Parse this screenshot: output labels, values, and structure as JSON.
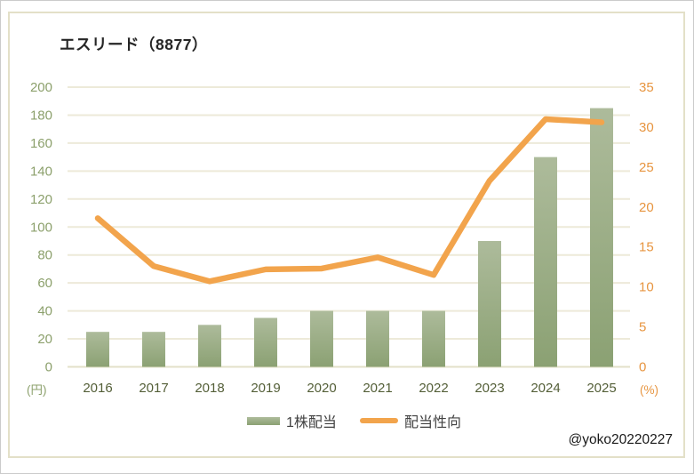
{
  "watermark": "@yoko20220227",
  "chart_data": {
    "type": "bar",
    "subtype": "bar+line combo, dual axis",
    "title": "エスリード（8877）",
    "categories": [
      "2016",
      "2017",
      "2018",
      "2019",
      "2020",
      "2021",
      "2022",
      "2023",
      "2024",
      "2025"
    ],
    "series": [
      {
        "name": "1株配当",
        "type": "bar",
        "axis": "left",
        "unit": "円",
        "values": [
          25,
          25,
          30,
          35,
          40,
          40,
          40,
          90,
          150,
          185
        ]
      },
      {
        "name": "配当性向",
        "type": "line",
        "axis": "right",
        "unit": "%",
        "values": [
          18.6,
          12.6,
          10.7,
          12.2,
          12.3,
          13.7,
          11.5,
          23.3,
          31.0,
          30.6
        ]
      }
    ],
    "left_axis": {
      "min": 0,
      "max": 200,
      "step": 20,
      "ticks": [
        0,
        20,
        40,
        60,
        80,
        100,
        120,
        140,
        160,
        180,
        200
      ],
      "unit_label": "(円)"
    },
    "right_axis": {
      "min": 0,
      "max": 35,
      "step": 5,
      "ticks": [
        0,
        5,
        10,
        15,
        20,
        25,
        30,
        35
      ],
      "unit_label": "(%)"
    },
    "grid": true,
    "legend_position": "bottom",
    "colors": {
      "bar_gradient_top": "#adbb9b",
      "bar_gradient_bottom": "#8ba173",
      "line": "#f2a44c",
      "gridline": "#edead9",
      "axis_line": "#e3e0c8",
      "frame_border": "#e3e0c8",
      "left_axis_labels": "#8ca06c",
      "right_axis_labels": "#e79540",
      "x_axis_labels": "#545f38",
      "title_text": "#262626",
      "legend_text": "#414141",
      "watermark_text": "#1a1a1a"
    }
  }
}
